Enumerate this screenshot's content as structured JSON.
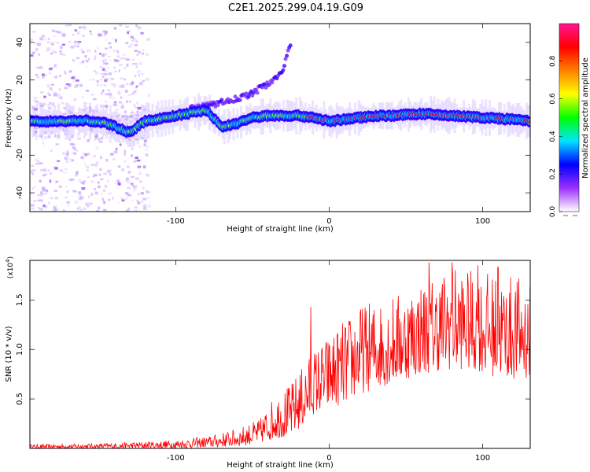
{
  "title": "C2E1.2025.299.04.19.G09",
  "chart_data": [
    {
      "type": "heatmap",
      "name": "spectrogram",
      "xlabel": "Height of straight line (km)",
      "ylabel": "Frequency (Hz)",
      "xlim": [
        -195,
        131
      ],
      "ylim": [
        -50,
        50
      ],
      "xticks": [
        -100,
        0,
        100
      ],
      "xtick_labels": [
        "-100",
        "0",
        "100"
      ],
      "yticks": [
        -40,
        -20,
        0,
        20,
        40
      ],
      "ytick_labels": [
        "-40",
        "-20",
        "0",
        "20",
        "40"
      ],
      "ridge": {
        "x": [
          -195,
          -175,
          -160,
          -145,
          -130,
          -120,
          -100,
          -80,
          -70,
          -60,
          -50,
          -40,
          -30,
          -20,
          -10,
          0,
          10,
          20,
          30,
          40,
          60,
          80,
          100,
          120,
          131
        ],
        "y": [
          -2,
          -2,
          -1.5,
          -3,
          -8,
          -2,
          1,
          4,
          -5,
          -3,
          0,
          1,
          1,
          1,
          0,
          -2,
          -1,
          0,
          1,
          1,
          2,
          1,
          0,
          -1,
          -2
        ]
      },
      "upper_branch": {
        "x": [
          -90,
          -75,
          -60,
          -50,
          -40,
          -30,
          -25
        ],
        "y": [
          5,
          7,
          10,
          13,
          18,
          25,
          40
        ]
      },
      "colorbar": {
        "label": "Normalized spectral amplitude",
        "range": [
          0,
          1
        ],
        "ticks": [
          0.0,
          0.2,
          0.4,
          0.6,
          0.8
        ],
        "tick_labels": [
          "0.0",
          "0.2",
          "0.4",
          "0.6",
          "0.8"
        ],
        "colors": [
          "#ffffff",
          "#9b30ff",
          "#0000ff",
          "#00e5ff",
          "#00ff00",
          "#ffff00",
          "#ff8000",
          "#ff0000",
          "#ff1493"
        ]
      }
    },
    {
      "type": "line",
      "name": "snr",
      "xlabel": "Height of straight line (km)",
      "ylabel": "SNR (10 * v/v)",
      "scale_label": "(x10",
      "scale_exp": "4",
      "scale_close": ")",
      "xlim": [
        -195,
        131
      ],
      "ylim": [
        0,
        1.9
      ],
      "xticks": [
        -100,
        0,
        100
      ],
      "xtick_labels": [
        "-100",
        "0",
        "100"
      ],
      "yticks": [
        0.5,
        1.0,
        1.5
      ],
      "ytick_labels": [
        "0.5",
        "1.0",
        "1.5"
      ],
      "color": "#ff0000",
      "envelope": {
        "x": [
          -195,
          -150,
          -120,
          -100,
          -80,
          -60,
          -45,
          -35,
          -25,
          -15,
          -10,
          0,
          10,
          20,
          30,
          40,
          50,
          60,
          70,
          80,
          90,
          100,
          110,
          120,
          131
        ],
        "low": [
          0.0,
          0.0,
          0.0,
          0.0,
          0.01,
          0.02,
          0.05,
          0.1,
          0.12,
          0.25,
          0.35,
          0.4,
          0.45,
          0.55,
          0.6,
          0.65,
          0.7,
          0.75,
          0.78,
          0.8,
          0.8,
          0.75,
          0.72,
          0.7,
          0.7
        ],
        "high": [
          0.04,
          0.05,
          0.07,
          0.09,
          0.12,
          0.2,
          0.3,
          0.55,
          0.65,
          0.9,
          1.0,
          1.15,
          1.3,
          1.45,
          1.5,
          1.55,
          1.6,
          1.7,
          1.75,
          1.85,
          1.8,
          1.8,
          1.75,
          1.75,
          1.7
        ]
      },
      "peaks": [
        {
          "x": -12,
          "y": 1.43
        },
        {
          "x": 65,
          "y": 1.88
        },
        {
          "x": 80,
          "y": 1.88
        },
        {
          "x": 97,
          "y": 1.85
        },
        {
          "x": 110,
          "y": 1.83
        }
      ]
    }
  ]
}
